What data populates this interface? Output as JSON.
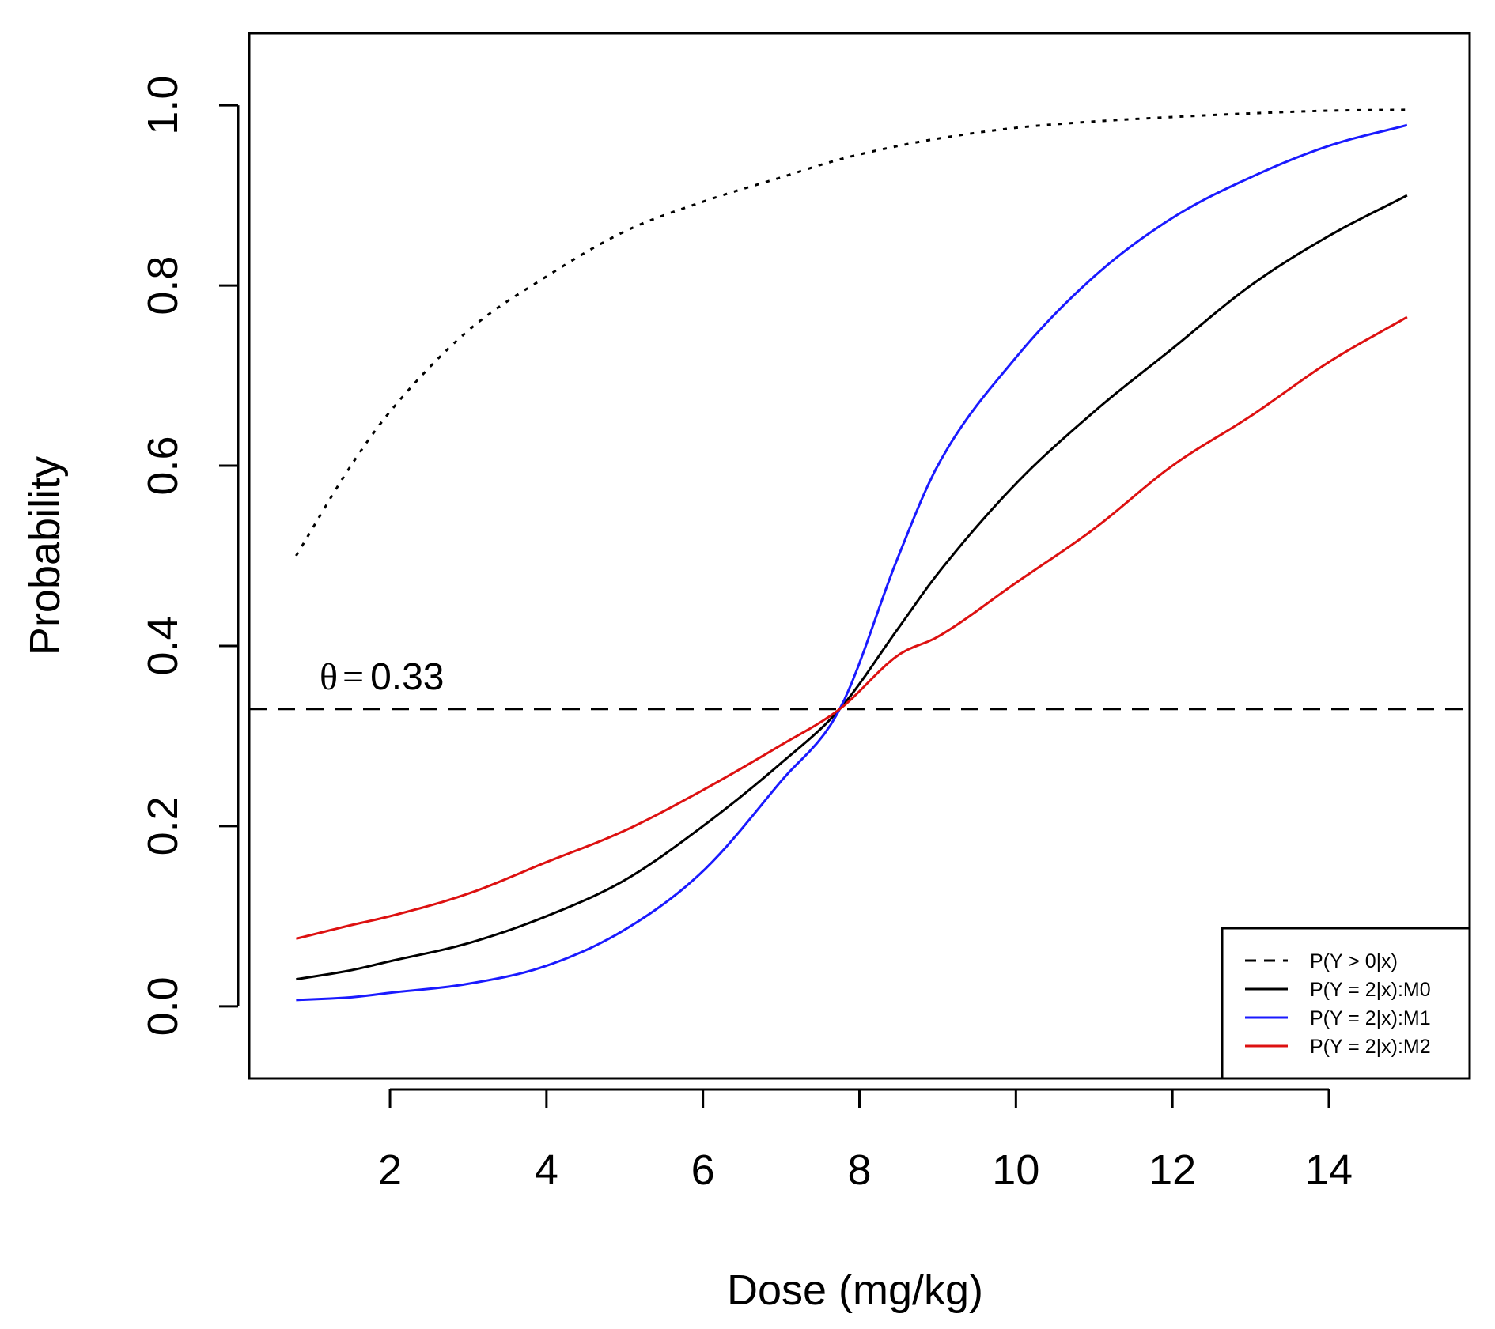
{
  "chart_data": {
    "type": "line",
    "title": "",
    "xlabel": "Dose (mg/kg)",
    "ylabel": "Probability",
    "xlim": [
      0.2,
      15.8
    ],
    "ylim": [
      -0.08,
      1.08
    ],
    "xticks": [
      2,
      4,
      6,
      8,
      10,
      12,
      14
    ],
    "xtick_labels": [
      "2",
      "4",
      "6",
      "8",
      "10",
      "12",
      "14"
    ],
    "yticks": [
      0.0,
      0.2,
      0.4,
      0.6,
      0.8,
      1.0
    ],
    "ytick_labels": [
      "0.0",
      "0.2",
      "0.4",
      "0.6",
      "0.8",
      "1.0"
    ],
    "grid": false,
    "legend_position": "bottom-right",
    "x": [
      0.8,
      1.5,
      2,
      3,
      4,
      5,
      6,
      7,
      7.75,
      8.5,
      9,
      10,
      11,
      12,
      13,
      14,
      15
    ],
    "series": [
      {
        "name": "P(Y > 0|x)",
        "legend_style": "dashed",
        "plot_style": "dotted",
        "color": "#000000",
        "values": [
          0.5,
          0.6,
          0.66,
          0.75,
          0.81,
          0.86,
          0.893,
          0.92,
          0.94,
          0.955,
          0.963,
          0.975,
          0.982,
          0.987,
          0.991,
          0.994,
          0.995
        ]
      },
      {
        "name": "P(Y = 2|x):M0",
        "legend_style": "solid",
        "plot_style": "solid",
        "color": "#000000",
        "values": [
          0.03,
          0.04,
          0.05,
          0.07,
          0.1,
          0.14,
          0.2,
          0.27,
          0.33,
          0.42,
          0.48,
          0.58,
          0.66,
          0.73,
          0.8,
          0.855,
          0.9
        ]
      },
      {
        "name": "P(Y = 2|x):M1",
        "legend_style": "solid",
        "plot_style": "solid",
        "color": "#1a1aff",
        "values": [
          0.007,
          0.01,
          0.015,
          0.025,
          0.045,
          0.085,
          0.15,
          0.25,
          0.33,
          0.5,
          0.6,
          0.72,
          0.81,
          0.875,
          0.92,
          0.955,
          0.978
        ]
      },
      {
        "name": "P(Y = 2|x):M2",
        "legend_style": "solid",
        "plot_style": "solid",
        "color": "#dd1111",
        "values": [
          0.075,
          0.09,
          0.1,
          0.125,
          0.16,
          0.195,
          0.24,
          0.29,
          0.33,
          0.39,
          0.41,
          0.47,
          0.53,
          0.6,
          0.655,
          0.715,
          0.765
        ]
      }
    ],
    "reference_line": {
      "y": 0.33,
      "style": "dashed",
      "label_symbol": "θ",
      "label_equals": "=",
      "label_value": "0.33"
    }
  }
}
